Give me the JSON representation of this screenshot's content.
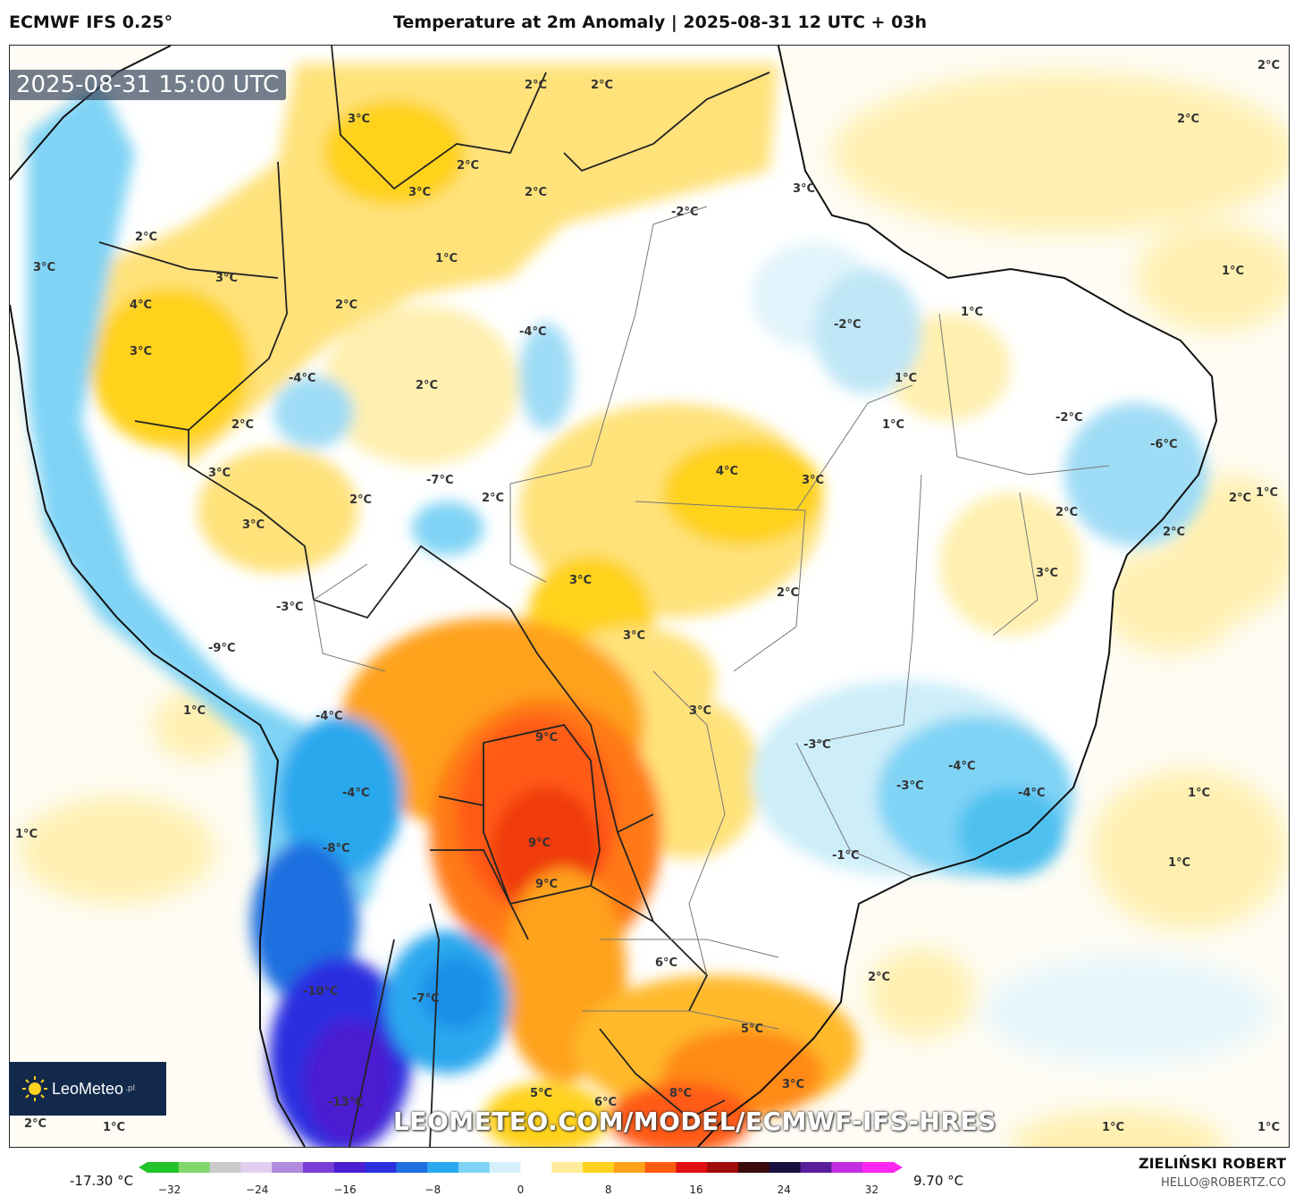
{
  "header": {
    "model": "ECMWF IFS 0.25°",
    "title": "Temperature at 2m Anomaly | 2025-08-31 12 UTC + 03h"
  },
  "map": {
    "valid_time": "2025-08-31 15:00 UTC",
    "watermark_url": "LEOMETEO.COM/MODEL/ECMWF-IFS-HRES",
    "logo_text": "LeoMeteo",
    "logo_suffix": ".pl",
    "contour_labels": [
      {
        "text": "3°C"
      },
      {
        "text": "3°C"
      },
      {
        "text": "2°C"
      },
      {
        "text": "2°C"
      },
      {
        "text": "2°C"
      },
      {
        "text": "2°C"
      },
      {
        "text": "3°C"
      },
      {
        "text": "2°C"
      },
      {
        "text": "-2°C"
      },
      {
        "text": "1°C"
      },
      {
        "text": "2°C"
      },
      {
        "text": "2°C"
      },
      {
        "text": "4°C"
      },
      {
        "text": "3°C"
      },
      {
        "text": "3°C"
      },
      {
        "text": "2°C"
      },
      {
        "text": "-4°C"
      },
      {
        "text": "-4°C"
      },
      {
        "text": "2°C"
      },
      {
        "text": "1°C"
      },
      {
        "text": "-2°C"
      },
      {
        "text": "1°C"
      },
      {
        "text": "1°C"
      },
      {
        "text": "1°C"
      },
      {
        "text": "2°C"
      },
      {
        "text": "3°C"
      },
      {
        "text": "3°C"
      },
      {
        "text": "-7°C"
      },
      {
        "text": "2°C"
      },
      {
        "text": "2°C"
      },
      {
        "text": "4°C"
      },
      {
        "text": "3°C"
      },
      {
        "text": "-2°C"
      },
      {
        "text": "-6°C"
      },
      {
        "text": "2°C"
      },
      {
        "text": "1°C"
      },
      {
        "text": "3°C"
      },
      {
        "text": "3°C"
      },
      {
        "text": "2°C"
      },
      {
        "text": "2°C"
      },
      {
        "text": "2°C"
      },
      {
        "text": "3°C"
      },
      {
        "text": "-3°C"
      },
      {
        "text": "-9°C"
      },
      {
        "text": "3°C"
      },
      {
        "text": "1°C"
      },
      {
        "text": "3°C"
      },
      {
        "text": "-4°C"
      },
      {
        "text": "9°C"
      },
      {
        "text": "-3°C"
      },
      {
        "text": "-4°C"
      },
      {
        "text": "-4°C"
      },
      {
        "text": "-3°C"
      },
      {
        "text": "-4°C"
      },
      {
        "text": "1°C"
      },
      {
        "text": "1°C"
      },
      {
        "text": "-8°C"
      },
      {
        "text": "9°C"
      },
      {
        "text": "9°C"
      },
      {
        "text": "-1°C"
      },
      {
        "text": "1°C"
      },
      {
        "text": "6°C"
      },
      {
        "text": "2°C"
      },
      {
        "text": "-10°C"
      },
      {
        "text": "-7°C"
      },
      {
        "text": "5°C"
      },
      {
        "text": "5°C"
      },
      {
        "text": "6°C"
      },
      {
        "text": "8°C"
      },
      {
        "text": "3°C"
      },
      {
        "text": "-13°C"
      },
      {
        "text": "2°C"
      },
      {
        "text": "1°C"
      },
      {
        "text": "1°C"
      },
      {
        "text": "1°C"
      }
    ]
  },
  "colorbar": {
    "min_label": "-17.30 °C",
    "max_label": "9.70 °C",
    "ticks": [
      "−32",
      "−24",
      "−16",
      "−8",
      "0",
      "8",
      "16",
      "24",
      "32"
    ],
    "tick_values": [
      -32,
      -24,
      -16,
      -8,
      0,
      8,
      16,
      24,
      32
    ],
    "range": [
      -34,
      34
    ],
    "colors": [
      "#22c22b",
      "#7fd66a",
      "#c9c9c9",
      "#e2cff0",
      "#b08be0",
      "#7a3fd8",
      "#4b1fd0",
      "#2b2fe0",
      "#1f6fe0",
      "#29a8ee",
      "#7fd3f5",
      "#d6f1fb",
      "#ffffff",
      "#ffeb9c",
      "#ffd21f",
      "#ffa21a",
      "#ff5a12",
      "#e01010",
      "#a00b0b",
      "#3a0c0c",
      "#1a1040",
      "#5a1e9a",
      "#c22ee0",
      "#ff27f0"
    ]
  },
  "footer": {
    "author": "ZIELIŃSKI ROBERT",
    "email": "HELLO@ROBERTZ.CO"
  }
}
